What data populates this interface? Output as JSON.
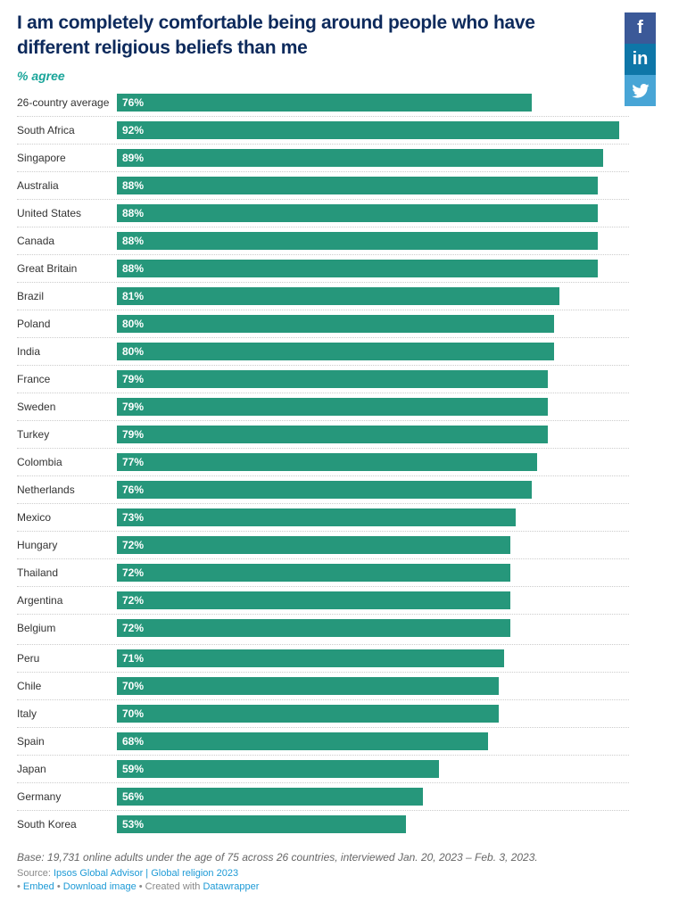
{
  "chart_data": {
    "type": "bar",
    "orientation": "horizontal",
    "title": "I am completely comfortable being around people who have different religious beliefs than me",
    "subtitle": "% agree",
    "categories": [
      "26-country average",
      "South Africa",
      "Singapore",
      "Australia",
      "United States",
      "Canada",
      "Great Britain",
      "Brazil",
      "Poland",
      "India",
      "France",
      "Sweden",
      "Turkey",
      "Colombia",
      "Netherlands",
      "Mexico",
      "Hungary",
      "Thailand",
      "Argentina",
      "Belgium",
      "Peru",
      "Chile",
      "Italy",
      "Spain",
      "Japan",
      "Germany",
      "South Korea"
    ],
    "values": [
      76,
      92,
      89,
      88,
      88,
      88,
      88,
      81,
      80,
      80,
      79,
      79,
      79,
      77,
      76,
      73,
      72,
      72,
      72,
      72,
      71,
      70,
      70,
      68,
      59,
      56,
      53
    ],
    "unit": "%",
    "xlim": [
      0,
      92
    ],
    "color": "#26977b"
  },
  "footer": {
    "base": "Base: 19,731 online adults under the age of 75 across 26 countries, interviewed Jan. 20, 2023 – Feb. 3, 2023.",
    "source_label": "Source: ",
    "source_link": "Ipsos Global Advisor | Global religion 2023",
    "embed": "Embed",
    "download": "Download image",
    "created": "Created with ",
    "datawrapper": "Datawrapper"
  },
  "share": {
    "facebook": "f",
    "linkedin": "in",
    "twitter": "twitter-icon"
  }
}
